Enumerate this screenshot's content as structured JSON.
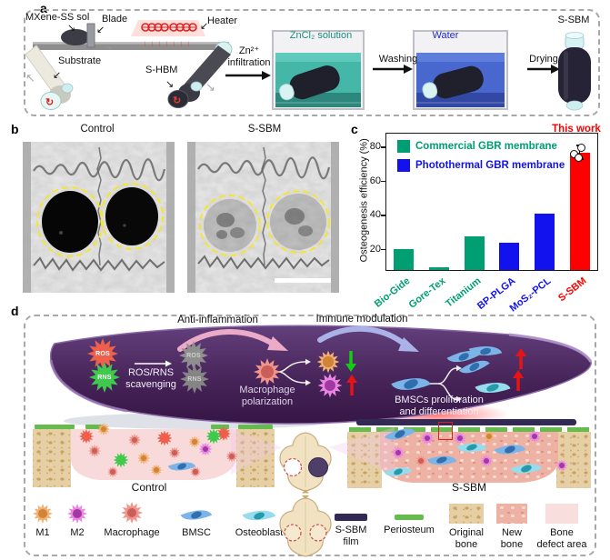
{
  "panel_labels": {
    "a": "a",
    "b": "b",
    "c": "c",
    "d": "d"
  },
  "panel_a": {
    "mxene_label": "MXene-SS sol",
    "blade_label": "Blade",
    "heater_label": "Heater",
    "substrate_label": "Substrate",
    "shbm_label": "S-HBM",
    "zn_line1": "Zn²⁺",
    "zn_line2": "infiltration",
    "tank1_label": "ZnCl₂ solution",
    "washing_label": "Washing",
    "tank2_label": "Water",
    "drying_label": "Drying",
    "product_label": "S-SBM"
  },
  "panel_b": {
    "left_title": "Control",
    "right_title": "S-SBM"
  },
  "chart_data": {
    "type": "bar",
    "title": "",
    "ylabel": "Osteogenesis efficiency (%)",
    "xlabel": "",
    "categories": [
      "Bio-Gide",
      "Gore-Tex",
      "Titanium",
      "BP-PLGA",
      "MoS₂-PCL",
      "S-SBM"
    ],
    "values": [
      20.5,
      9.5,
      28,
      24,
      41,
      77
    ],
    "bar_colors": [
      "#009e73",
      "#009e73",
      "#009e73",
      "#1212ee",
      "#1212ee",
      "#ff0000"
    ],
    "ylim": [
      8,
      88
    ],
    "yticks": [
      20,
      40,
      60,
      80
    ],
    "grid": false,
    "legend": [
      {
        "label": "Commercial GBR membrane",
        "color": "#009e73"
      },
      {
        "label": "Photothermal GBR membrane",
        "color": "#1212ee"
      }
    ],
    "legend_position": "top-left",
    "annotation": {
      "text": "This work",
      "color": "#ff0000",
      "target": "S-SBM"
    },
    "error_bar": {
      "category": "S-SBM",
      "error": 4
    }
  },
  "panel_d": {
    "anti_inflammation": "Anti-inflammation",
    "immune_modulation": "Immune modulation",
    "ros": "ROS",
    "rns": "RNS",
    "ros_faded": "ROS",
    "rns_faded": "RNS",
    "scavenging_line1": "ROS/RNS",
    "scavenging_line2": "scavenging",
    "polarization_line1": "Macrophage",
    "polarization_line2": "polarization",
    "bmsc_line1": "BMSCs proliferation",
    "bmsc_line2": "and differentiation",
    "control_label": "Control",
    "ssbm_label": "S-SBM",
    "legend": [
      {
        "label": "M1"
      },
      {
        "label": "M2"
      },
      {
        "label": "Macrophage"
      },
      {
        "label": "BMSC"
      },
      {
        "label": "Osteoblast"
      },
      {
        "label": "S-SBM film"
      },
      {
        "label": "Periosteum"
      },
      {
        "label": "Original bone"
      },
      {
        "label": "New bone"
      },
      {
        "label": "Bone defect area"
      }
    ]
  },
  "colors": {
    "commercial_green": "#009e73",
    "photothermal_blue": "#1212ee",
    "highlight_red": "#ff0000",
    "membrane_purple": "#472459",
    "periosteum_green": "#66bb4e",
    "film_navy": "#322a55",
    "zncl2_teal": "#1d8e80",
    "water_blue": "#2026cc"
  }
}
